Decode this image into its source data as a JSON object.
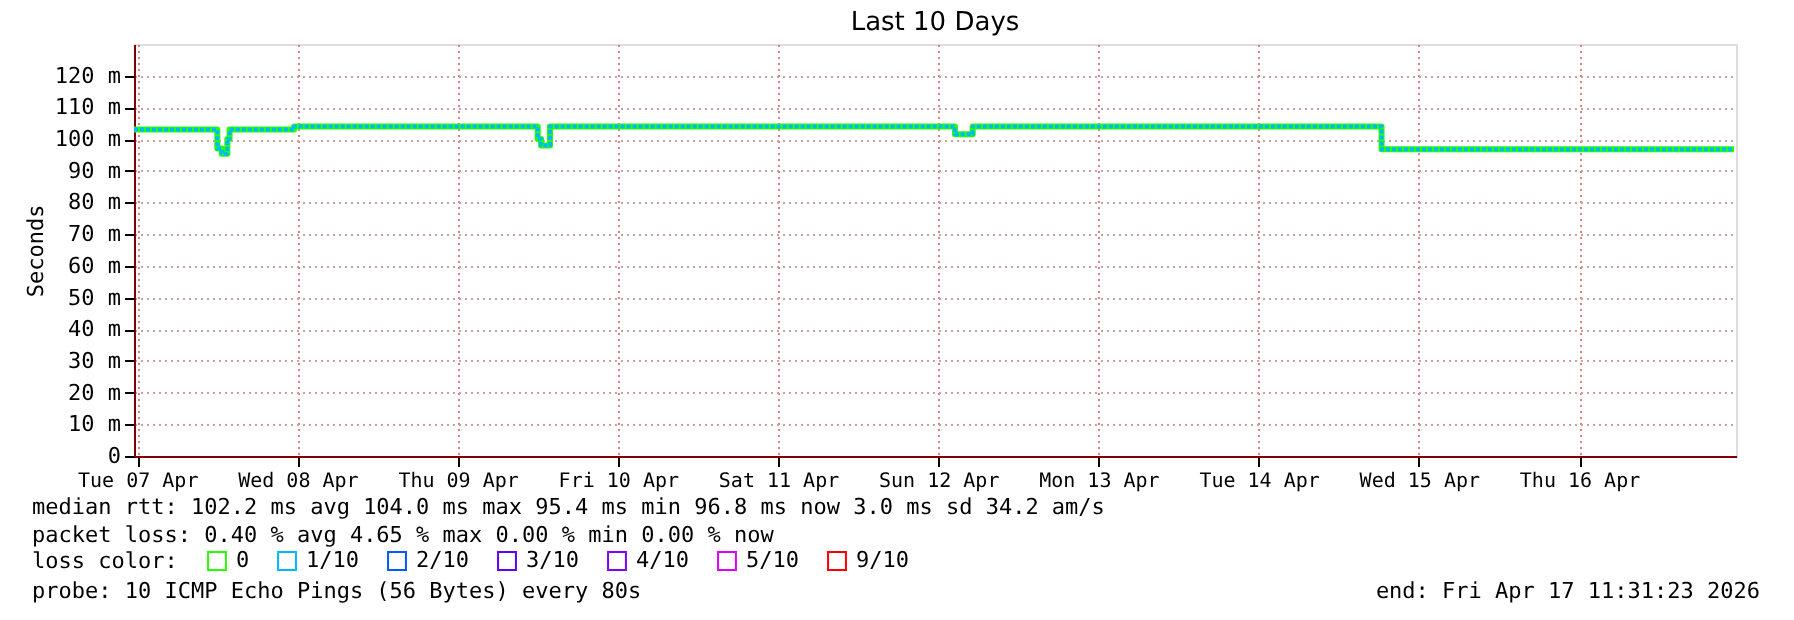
{
  "chart_data": {
    "type": "step",
    "title": "Last 10 Days",
    "ylabel": "Seconds",
    "x": [
      "2026-04-07T11:31",
      "2026-04-08T00:00",
      "2026-04-08T00:40",
      "2026-04-08T01:30",
      "2026-04-08T01:50",
      "2026-04-08T11:30",
      "2026-04-10T00:00",
      "2026-04-10T00:30",
      "2026-04-10T01:50",
      "2026-04-12T14:30",
      "2026-04-12T17:10",
      "2026-04-15T06:25",
      "2026-04-17T11:13"
    ],
    "series": [
      {
        "name": "0",
        "color": "#26ff00",
        "values": [
          103,
          97,
          95.4,
          100,
          103,
          104,
          100,
          98,
          104,
          101.5,
          104,
          96.8,
          96.8
        ]
      },
      {
        "name": "1/10",
        "color": "#00b8ff",
        "line_style": "dashed",
        "values": [
          103,
          97,
          95.4,
          100,
          103,
          104,
          100,
          98,
          104,
          101.5,
          104,
          96.8,
          96.8
        ]
      },
      {
        "name": "2/10",
        "color": "#0059ff",
        "values": [
          null,
          null,
          null,
          null,
          null,
          null,
          null,
          null,
          null,
          null,
          null,
          null,
          null
        ]
      },
      {
        "name": "3/10",
        "color": "#5e00ff",
        "values": [
          null,
          null,
          null,
          null,
          null,
          null,
          null,
          null,
          null,
          null,
          null,
          null,
          null
        ]
      },
      {
        "name": "4/10",
        "color": "#7e00ff",
        "values": [
          null,
          null,
          null,
          null,
          null,
          null,
          null,
          null,
          null,
          null,
          null,
          null,
          null
        ]
      },
      {
        "name": "5/10",
        "color": "#dd00ff",
        "values": [
          null,
          null,
          null,
          null,
          null,
          null,
          null,
          null,
          null,
          null,
          null,
          null,
          null
        ]
      },
      {
        "name": "9/10",
        "color": "#ff0000",
        "values": [
          null,
          null,
          null,
          null,
          null,
          null,
          null,
          null,
          null,
          null,
          null,
          null,
          null
        ]
      }
    ],
    "legend_title": "loss color:",
    "legend": "bottom",
    "xlim": [
      "2026-04-07T11:31",
      "2026-04-17T11:31"
    ],
    "xticks": [
      {
        "value": "2026-04-07T12:00",
        "label": "Tue 07 Apr"
      },
      {
        "value": "2026-04-08T12:00",
        "label": "Wed 08 Apr"
      },
      {
        "value": "2026-04-09T12:00",
        "label": "Thu 09 Apr"
      },
      {
        "value": "2026-04-10T12:00",
        "label": "Fri 10 Apr"
      },
      {
        "value": "2026-04-11T12:00",
        "label": "Sat 11 Apr"
      },
      {
        "value": "2026-04-12T12:00",
        "label": "Sun 12 Apr"
      },
      {
        "value": "2026-04-13T12:00",
        "label": "Mon 13 Apr"
      },
      {
        "value": "2026-04-14T12:00",
        "label": "Tue 14 Apr"
      },
      {
        "value": "2026-04-15T12:00",
        "label": "Wed 15 Apr"
      },
      {
        "value": "2026-04-16T12:00",
        "label": "Thu 16 Apr"
      }
    ],
    "ylim": [
      0,
      130
    ],
    "yticks": [
      0,
      {
        "value": 10,
        "label": "10 m"
      },
      {
        "value": 20,
        "label": "20 m"
      },
      {
        "value": 30,
        "label": "30 m"
      },
      {
        "value": 40,
        "label": "40 m"
      },
      {
        "value": 50,
        "label": "50 m"
      },
      {
        "value": 60,
        "label": "60 m"
      },
      {
        "value": 70,
        "label": "70 m"
      },
      {
        "value": 80,
        "label": "80 m"
      },
      {
        "value": 90,
        "label": "90 m"
      },
      {
        "value": 100,
        "label": "100 m"
      },
      {
        "value": 110,
        "label": "110 m"
      },
      {
        "value": 120,
        "label": "120 m"
      }
    ],
    "grid": true,
    "marker": "none",
    "line_style": "solid",
    "annotations": [
      "median rtt:  102.2 ms avg  104.0 ms max  95.4 ms min  96.8 ms now  3.0 ms sd  34.2   am/s",
      "packet loss: 0.40 % avg  4.65 % max  0.00 % min  0.00 % now",
      "probe:       10 ICMP Echo Pings (56 Bytes) every 80s",
      "end: Fri Apr 17 11:31:23 2026"
    ]
  }
}
